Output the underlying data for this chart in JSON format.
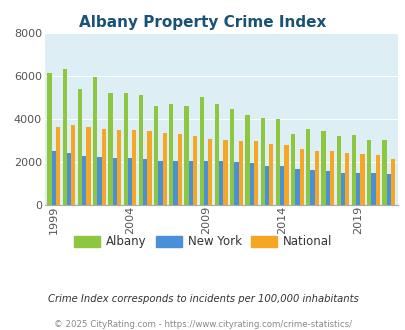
{
  "title": "Albany Property Crime Index",
  "subtitle": "Crime Index corresponds to incidents per 100,000 inhabitants",
  "footer": "© 2025 CityRating.com - https://www.cityrating.com/crime-statistics/",
  "years": [
    1999,
    2000,
    2001,
    2002,
    2003,
    2004,
    2005,
    2006,
    2007,
    2008,
    2009,
    2010,
    2011,
    2012,
    2013,
    2014,
    2015,
    2016,
    2017,
    2018,
    2019,
    2020,
    2021
  ],
  "albany": [
    6150,
    6300,
    5380,
    5940,
    5200,
    5200,
    5120,
    4580,
    4700,
    4620,
    5020,
    4700,
    4450,
    4170,
    4020,
    4000,
    3280,
    3520,
    3430,
    3200,
    3250,
    3020,
    3020
  ],
  "newyork": [
    2520,
    2420,
    2270,
    2200,
    2150,
    2170,
    2120,
    2050,
    2050,
    2020,
    2010,
    2020,
    1980,
    1930,
    1800,
    1800,
    1640,
    1590,
    1550,
    1490,
    1470,
    1450,
    1420
  ],
  "national": [
    3640,
    3700,
    3600,
    3510,
    3490,
    3490,
    3450,
    3350,
    3280,
    3210,
    3060,
    2990,
    2950,
    2960,
    2840,
    2760,
    2610,
    2500,
    2480,
    2420,
    2380,
    2290,
    2110
  ],
  "albany_color": "#8dc63f",
  "newyork_color": "#4a90d9",
  "national_color": "#f5a623",
  "plot_bg": "#ddeef5",
  "grid_color": "#ffffff",
  "ylim": [
    0,
    8000
  ],
  "yticks": [
    0,
    2000,
    4000,
    6000,
    8000
  ],
  "xtick_labels": [
    "1999",
    "2004",
    "2009",
    "2014",
    "2019"
  ],
  "xtick_positions": [
    1999,
    2004,
    2009,
    2014,
    2019
  ],
  "title_color": "#1a5276",
  "subtitle_color": "#333333",
  "footer_color": "#888888"
}
